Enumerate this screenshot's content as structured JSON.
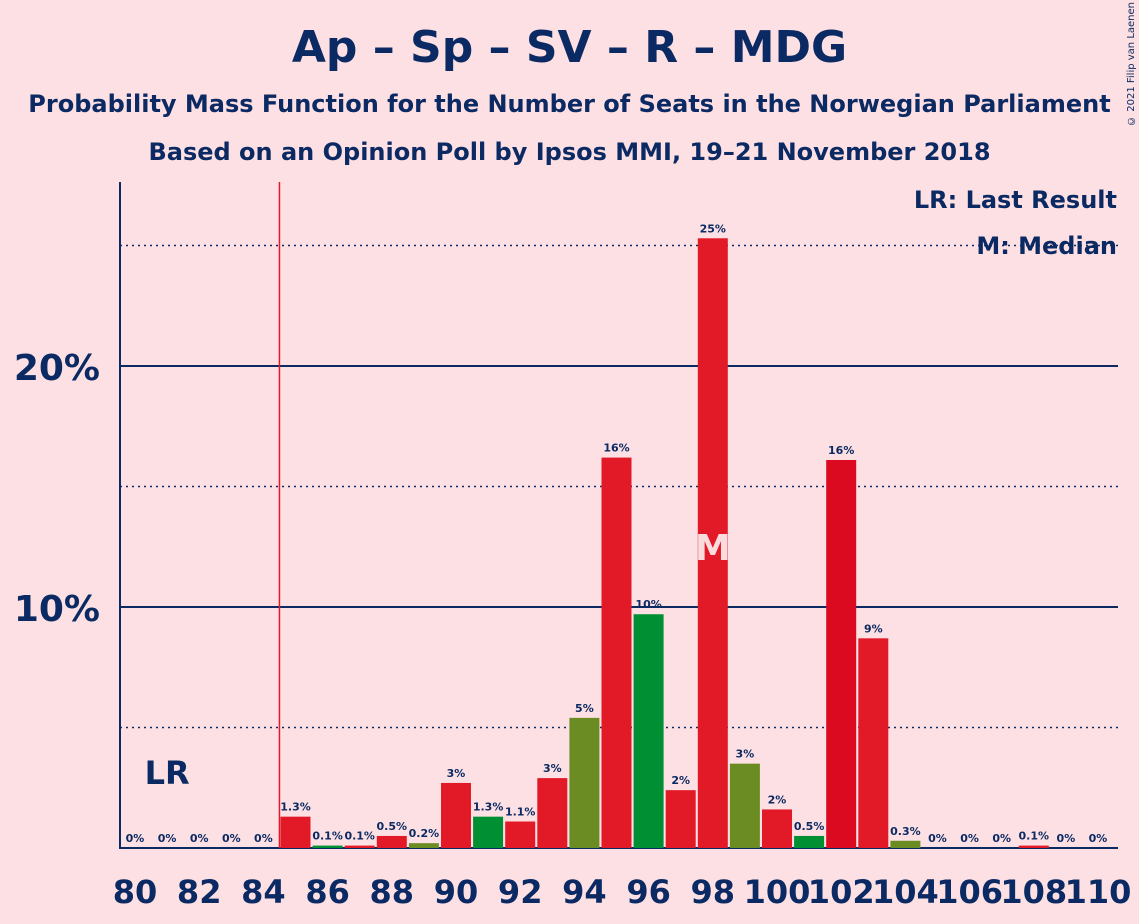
{
  "title": "Ap – Sp – SV – R – MDG",
  "subtitle1": "Probability Mass Function for the Number of Seats in the Norwegian Parliament",
  "subtitle2": "Based on an Opinion Poll by Ipsos MMI, 19–21 November 2018",
  "copyright": "© 2021 Filip van Laenen",
  "legend": {
    "last_result": "LR: Last Result",
    "median": "M: Median"
  },
  "colors": {
    "background": "#fde0e3",
    "text": "#0b2a63",
    "red": "#e21a27",
    "green": "#008f32",
    "olive": "#6b8c23",
    "crimson": "#db0a21"
  },
  "chart_data": {
    "type": "bar",
    "x": [
      80,
      81,
      82,
      83,
      84,
      85,
      86,
      87,
      88,
      89,
      90,
      91,
      92,
      93,
      94,
      95,
      96,
      97,
      98,
      99,
      100,
      101,
      102,
      103,
      104,
      105,
      106,
      107,
      108,
      109,
      110
    ],
    "values": [
      0,
      0,
      0,
      0,
      0,
      1.3,
      0.1,
      0.1,
      0.5,
      0.2,
      2.7,
      1.3,
      1.1,
      2.9,
      5.4,
      16.2,
      9.7,
      2.4,
      25.3,
      3.5,
      1.6,
      0.5,
      16.1,
      8.7,
      0.3,
      0,
      0,
      0,
      0.1,
      0,
      0
    ],
    "labels": [
      "0%",
      "0%",
      "0%",
      "0%",
      "0%",
      "1.3%",
      "0.1%",
      "0.1%",
      "0.5%",
      "0.2%",
      "3%",
      "1.3%",
      "1.1%",
      "3%",
      "5%",
      "16%",
      "10%",
      "2%",
      "25%",
      "3%",
      "2%",
      "0.5%",
      "16%",
      "9%",
      "0.3%",
      "0%",
      "0%",
      "0%",
      "0.1%",
      "0%",
      "0%"
    ],
    "colors": [
      "red",
      "red",
      "red",
      "red",
      "red",
      "red",
      "green",
      "red",
      "red",
      "olive",
      "red",
      "green",
      "red",
      "red",
      "olive",
      "red",
      "green",
      "red",
      "red",
      "olive",
      "red",
      "green",
      "crimson",
      "red",
      "olive",
      "red",
      "red",
      "red",
      "red",
      "red",
      "red"
    ],
    "x_ticks": [
      "80",
      "82",
      "84",
      "86",
      "88",
      "90",
      "92",
      "94",
      "96",
      "98",
      "100",
      "102",
      "104",
      "106",
      "108",
      "110"
    ],
    "y_ticks": [
      "10%",
      "20%"
    ],
    "ylim": [
      0,
      27.5
    ],
    "solid_gridlines": [
      10,
      20
    ],
    "dotted_gridlines": [
      5,
      15,
      25
    ],
    "last_result_seat": 85,
    "last_result_label": "LR",
    "median_seat": 98,
    "median_label": "M"
  }
}
